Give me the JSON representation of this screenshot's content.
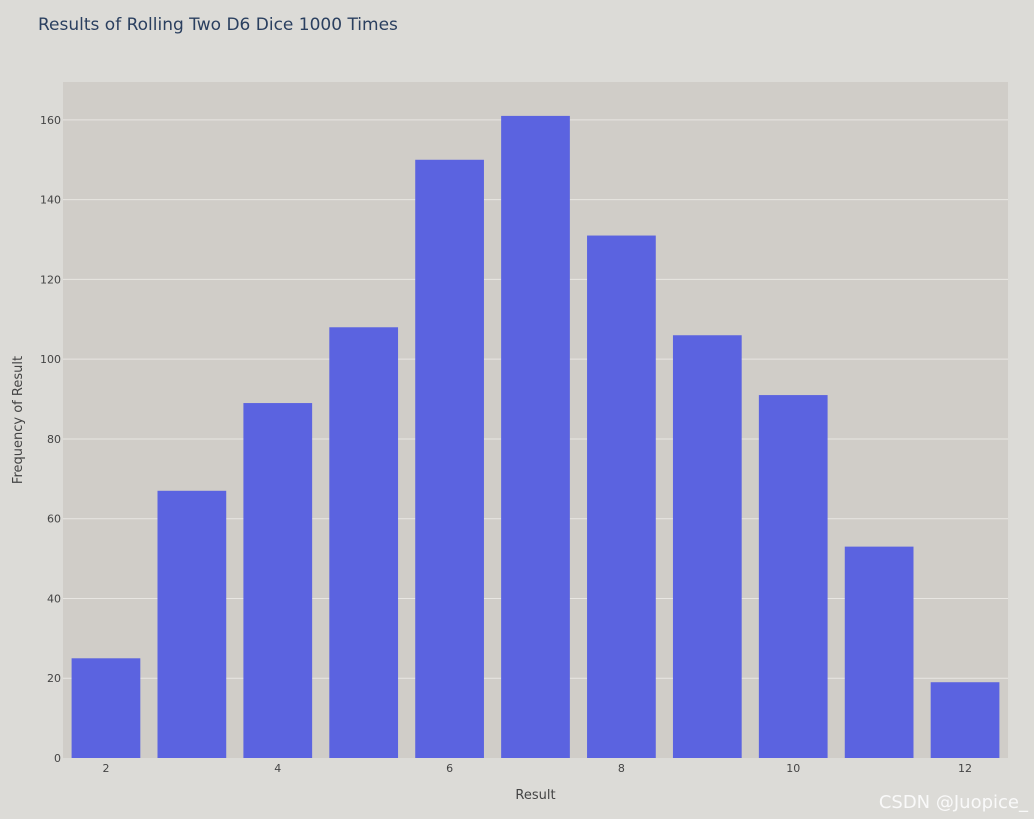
{
  "title": "Results of Rolling Two D6 Dice 1000 Times",
  "watermark": "CSDN @Juopice_",
  "colors": {
    "bar": "#5b63e0",
    "plot_bg": "#d0cdc8",
    "page_bg": "#dcdbd7",
    "grid": "#e8e6e2",
    "text": "#444444"
  },
  "chart_data": {
    "type": "bar",
    "title": "Results of Rolling Two D6 Dice 1000 Times",
    "xlabel": "Result",
    "ylabel": "Frequency of Result",
    "x": [
      2,
      3,
      4,
      5,
      6,
      7,
      8,
      9,
      10,
      11,
      12
    ],
    "values": [
      25,
      67,
      89,
      108,
      150,
      161,
      131,
      106,
      91,
      53,
      19
    ],
    "xlim": [
      1.5,
      12.5
    ],
    "ylim": [
      0,
      169.5
    ],
    "x_ticks": [
      2,
      4,
      6,
      8,
      10,
      12
    ],
    "y_ticks": [
      0,
      20,
      40,
      60,
      80,
      100,
      120,
      140,
      160
    ],
    "grid": true
  }
}
